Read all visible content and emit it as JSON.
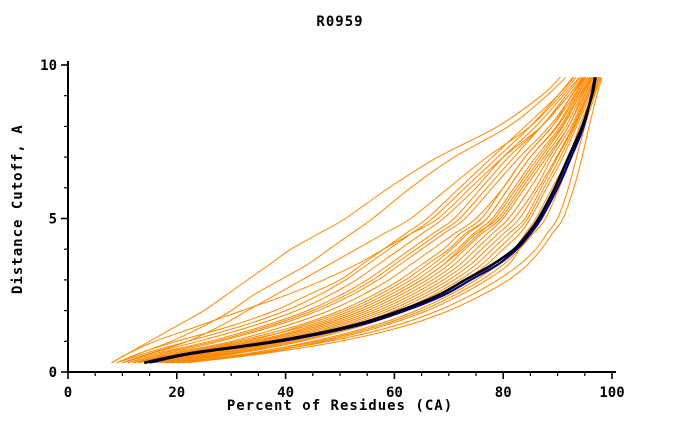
{
  "figure": {
    "title": "R0959",
    "xlabel": "Percent of Residues (CA)",
    "ylabel": "Distance Cutoff, A"
  },
  "chart_data": {
    "type": "line",
    "title": "R0959",
    "xlabel": "Percent of Residues (CA)",
    "ylabel": "Distance Cutoff, A",
    "xlim": [
      0,
      100
    ],
    "ylim": [
      0,
      10
    ],
    "x_tick_labels": [
      0,
      20,
      40,
      60,
      80,
      100
    ],
    "y_tick_labels": [
      0,
      5,
      10
    ],
    "x_minor_step": 5,
    "y_minor_step": 1,
    "grid": false,
    "legend": "none",
    "colors": {
      "model_lines": "#ff8800",
      "primary_curve": "#000000",
      "secondary_curve": "#000080",
      "axis": "#000000",
      "background": "#ffffff"
    },
    "y_levels": [
      0.3,
      0.6,
      1.0,
      1.5,
      2.0,
      2.5,
      3.0,
      3.5,
      4.0,
      4.5,
      5.0,
      6.0,
      7.0,
      8.0,
      9.0,
      9.6
    ],
    "primary_curve_x": [
      14,
      22,
      38,
      52,
      61,
      68,
      73,
      78,
      82,
      84.5,
      86.5,
      89.5,
      92,
      94.5,
      96.3,
      97
    ],
    "secondary_curve_x": [
      15,
      23,
      39,
      53,
      62,
      69,
      74,
      79,
      82.5,
      85,
      87,
      90,
      92.5,
      94.8,
      96.2,
      96.8
    ],
    "model_curves_x": [
      [
        8,
        11,
        15,
        20,
        25,
        29,
        33,
        37,
        41,
        46,
        51,
        59,
        68,
        79,
        87,
        90.5
      ],
      [
        9,
        13,
        20,
        30,
        38,
        44,
        50,
        54,
        58,
        62,
        66,
        72,
        78,
        84,
        90,
        93
      ],
      [
        10,
        15,
        24,
        34,
        42,
        48,
        53,
        57,
        61,
        65,
        69,
        75,
        80,
        86,
        91,
        94
      ],
      [
        11,
        17,
        27,
        37,
        45,
        51,
        56,
        60,
        64,
        68,
        72,
        77,
        82,
        87,
        92,
        94.5
      ],
      [
        12,
        19,
        30,
        40,
        48,
        54,
        59,
        63,
        67,
        71,
        75,
        80,
        84,
        89,
        93,
        95
      ],
      [
        13,
        21,
        33,
        43,
        51,
        57,
        62,
        66,
        70,
        73,
        77,
        81,
        85,
        90,
        93.5,
        95.5
      ],
      [
        14,
        23,
        35,
        46,
        54,
        60,
        65,
        69,
        72,
        75,
        79,
        83,
        87,
        91,
        94,
        96
      ],
      [
        15,
        25,
        37,
        48,
        56,
        62,
        67,
        71,
        74,
        77,
        80,
        84,
        88,
        92,
        94.5,
        96.3
      ],
      [
        16,
        27,
        39,
        50,
        58,
        64,
        69,
        73,
        76,
        79,
        82,
        86,
        89,
        92.5,
        95,
        96.6
      ],
      [
        17,
        29,
        41,
        52,
        60,
        66,
        71,
        75,
        78,
        81,
        84,
        87,
        90,
        93,
        95.5,
        97
      ],
      [
        18,
        31,
        43,
        54,
        62,
        68,
        73,
        77,
        80,
        83,
        85,
        88,
        91,
        93.5,
        96,
        97.3
      ],
      [
        19,
        33,
        45,
        56,
        64,
        70,
        75,
        79,
        82,
        84,
        86,
        89,
        92,
        94,
        96.3,
        97.6
      ],
      [
        20,
        35,
        47,
        58,
        66,
        72,
        77,
        81,
        83,
        85,
        87,
        90,
        92.5,
        94.5,
        96.6,
        97.8
      ],
      [
        12,
        20,
        31,
        42,
        50,
        56,
        61,
        65,
        69,
        72,
        76,
        80,
        84,
        89,
        92.5,
        94.8
      ],
      [
        10,
        16,
        26,
        36,
        44,
        50,
        55,
        59,
        63,
        67,
        71,
        76,
        81,
        87,
        91.5,
        94.2
      ],
      [
        9,
        14,
        22,
        32,
        40,
        46,
        51,
        55,
        59,
        63,
        67,
        73,
        79,
        85,
        90,
        92.8
      ],
      [
        16,
        26,
        38,
        49,
        57,
        63,
        68,
        72,
        75,
        78,
        81,
        85,
        88.5,
        92,
        94.8,
        96.4
      ],
      [
        18,
        30,
        42,
        53,
        61,
        67,
        72,
        76,
        79,
        82,
        84.5,
        87.5,
        90.5,
        93.2,
        95.7,
        97.1
      ],
      [
        14,
        24,
        36,
        47,
        55,
        61,
        66,
        70,
        73,
        76,
        79.5,
        83.5,
        87.5,
        91.5,
        94.3,
        96.1
      ],
      [
        13,
        22,
        34,
        45,
        53,
        59,
        64,
        68,
        71.5,
        74.5,
        78,
        82,
        86,
        90.5,
        93.7,
        95.6
      ],
      [
        20,
        34,
        48,
        60,
        68,
        74,
        79,
        83,
        86,
        88,
        90,
        92,
        93.5,
        95,
        96.8,
        98
      ],
      [
        22,
        36,
        50,
        62,
        70,
        76,
        81,
        84.5,
        87,
        89,
        91,
        93,
        94.5,
        95.8,
        97.2,
        98.2
      ],
      [
        8,
        11,
        16,
        24,
        32,
        40,
        47,
        53,
        58,
        63,
        68,
        74,
        80,
        87,
        92,
        94.6
      ],
      [
        11,
        18,
        28,
        38,
        46,
        52,
        57,
        61,
        65,
        69,
        73,
        78,
        83,
        88.5,
        92.6,
        95
      ],
      [
        15,
        24,
        35,
        46,
        54,
        60,
        65,
        69,
        72.5,
        75.5,
        78.5,
        82.5,
        86.5,
        90.8,
        94,
        95.9
      ],
      [
        17,
        28,
        40,
        51,
        59,
        65,
        70,
        74,
        77,
        80,
        83,
        86.5,
        89.8,
        92.8,
        95.3,
        96.9
      ],
      [
        10,
        15,
        22,
        28,
        33,
        38,
        43,
        48,
        53,
        58,
        63,
        70,
        77,
        85,
        90.5,
        93.4
      ],
      [
        9,
        13,
        19,
        25,
        30,
        34,
        39,
        44,
        48,
        52,
        56,
        63,
        71,
        81,
        88,
        91.5
      ],
      [
        21,
        33,
        46,
        57,
        65,
        71,
        76,
        80,
        83,
        85.5,
        87.8,
        90.3,
        92.6,
        94.7,
        96.5,
        97.5
      ],
      [
        12,
        21,
        32,
        44,
        52,
        58,
        63,
        67,
        70.5,
        73.5,
        77,
        81,
        85,
        89.8,
        93.2,
        95.2
      ]
    ]
  }
}
